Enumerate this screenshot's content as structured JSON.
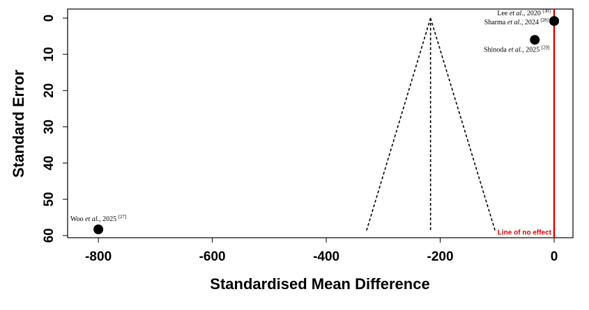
{
  "chart_data": {
    "type": "scatter",
    "xlabel": "Standardised Mean Difference",
    "ylabel": "Standard Error",
    "xlim": [
      -854,
      33
    ],
    "ylim": [
      60.6,
      -2.5
    ],
    "xticks": [
      -800,
      -600,
      -400,
      -200,
      0
    ],
    "yticks": [
      0,
      10,
      20,
      30,
      40,
      50,
      60
    ],
    "color": "#000000",
    "points": [
      {
        "author": "Lee",
        "etal": "et al.",
        "year": ", 2020",
        "ref": "[30]",
        "x": 0,
        "se": 0.8
      },
      {
        "author": "Sharma",
        "etal": "et al.",
        "year": ", 2024",
        "ref": "[28]",
        "x": 0,
        "se": 0.8
      },
      {
        "author": "Shinoda",
        "etal": "et al.",
        "year": ", 2025",
        "ref": "[29]",
        "x": -34,
        "se": 6
      },
      {
        "author": "Woo",
        "etal": "et al.",
        "year": ", 2025",
        "ref": "[27]",
        "x": -800,
        "se": 58.3
      }
    ],
    "funnel": {
      "center": -217,
      "se_max": 59,
      "lower": -330,
      "upper": -103
    },
    "reference_line": {
      "x": 0,
      "label": "Line of no effect",
      "color": "#e00000"
    }
  }
}
